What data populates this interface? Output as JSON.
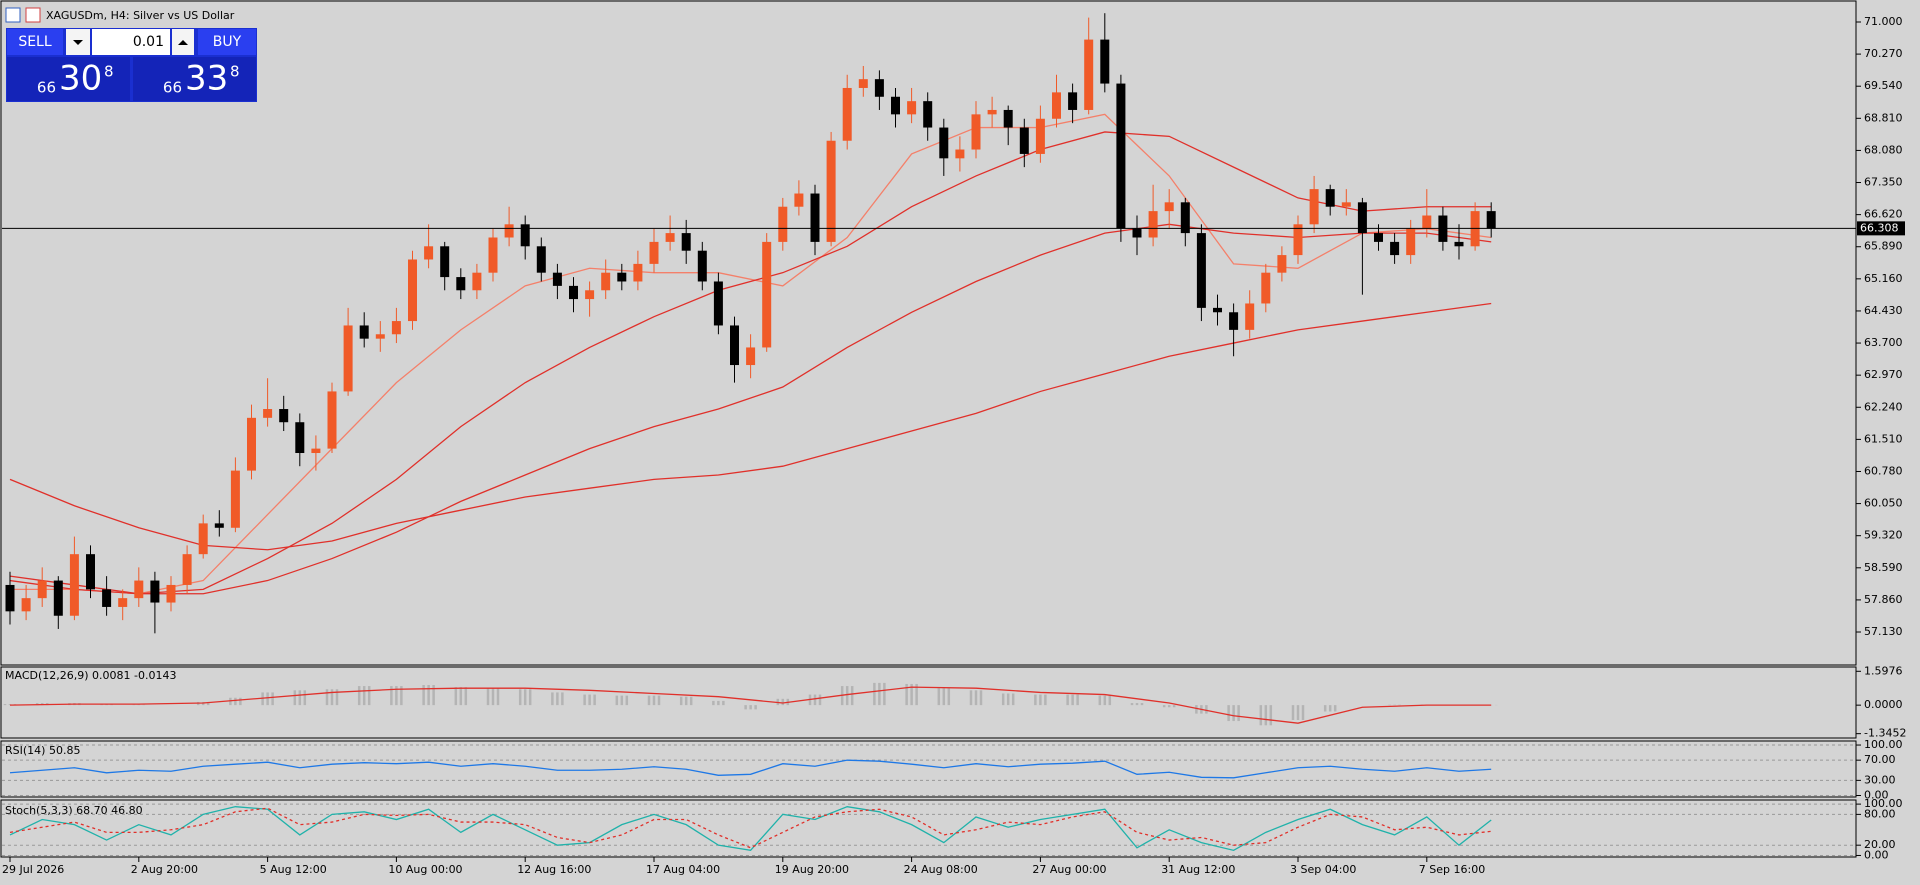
{
  "header": {
    "title": "XAGUSDm, H4:  Silver vs US Dollar"
  },
  "trade_panel": {
    "sell": "SELL",
    "buy": "BUY",
    "volume": "0.01",
    "bid": {
      "big": "66",
      "main": "30",
      "small": "8"
    },
    "ask": {
      "big": "66",
      "main": "33",
      "small": "8"
    }
  },
  "chart_data": {
    "type": "candlestick",
    "categories": [
      "29 Jul 2026",
      null,
      null,
      null,
      null,
      null,
      null,
      null,
      "2 Aug 20:00",
      null,
      null,
      null,
      null,
      null,
      null,
      null,
      "5 Aug 12:00",
      null,
      null,
      null,
      null,
      null,
      null,
      null,
      "10 Aug 00:00",
      null,
      null,
      null,
      null,
      null,
      null,
      null,
      "12 Aug 16:00",
      null,
      null,
      null,
      null,
      null,
      null,
      null,
      "17 Aug 04:00",
      null,
      null,
      null,
      null,
      null,
      null,
      null,
      "19 Aug 20:00",
      null,
      null,
      null,
      null,
      null,
      null,
      null,
      "24 Aug 08:00",
      null,
      null,
      null,
      null,
      null,
      null,
      null,
      "27 Aug 00:00",
      null,
      null,
      null,
      null,
      null,
      null,
      null,
      "31 Aug 12:00",
      null,
      null,
      null,
      null,
      null,
      null,
      null,
      "3 Sep 04:00",
      null,
      null,
      null,
      null,
      null,
      null,
      null,
      "7 Sep 16:00",
      null,
      null,
      null,
      null
    ],
    "candles": [
      [
        58.2,
        58.5,
        57.3,
        57.6
      ],
      [
        57.6,
        58.2,
        57.4,
        57.9
      ],
      [
        57.9,
        58.6,
        57.7,
        58.3
      ],
      [
        58.3,
        58.4,
        57.2,
        57.5
      ],
      [
        57.5,
        59.3,
        57.4,
        58.9
      ],
      [
        58.9,
        59.1,
        57.9,
        58.1
      ],
      [
        58.1,
        58.4,
        57.5,
        57.7
      ],
      [
        57.7,
        58.1,
        57.4,
        57.9
      ],
      [
        57.9,
        58.6,
        57.7,
        58.3
      ],
      [
        58.3,
        58.5,
        57.1,
        57.8
      ],
      [
        57.8,
        58.4,
        57.6,
        58.2
      ],
      [
        58.2,
        59.1,
        58.0,
        58.9
      ],
      [
        58.9,
        59.8,
        58.8,
        59.6
      ],
      [
        59.6,
        59.9,
        59.3,
        59.5
      ],
      [
        59.5,
        61.1,
        59.4,
        60.8
      ],
      [
        60.8,
        62.3,
        60.6,
        62.0
      ],
      [
        62.0,
        62.9,
        61.8,
        62.2
      ],
      [
        62.2,
        62.5,
        61.7,
        61.9
      ],
      [
        61.9,
        62.1,
        60.9,
        61.2
      ],
      [
        61.2,
        61.6,
        60.8,
        61.3
      ],
      [
        61.3,
        62.8,
        61.2,
        62.6
      ],
      [
        62.6,
        64.5,
        62.5,
        64.1
      ],
      [
        64.1,
        64.4,
        63.6,
        63.8
      ],
      [
        63.8,
        64.2,
        63.5,
        63.9
      ],
      [
        63.9,
        64.5,
        63.7,
        64.2
      ],
      [
        64.2,
        65.8,
        64.0,
        65.6
      ],
      [
        65.6,
        66.4,
        65.4,
        65.9
      ],
      [
        65.9,
        66.0,
        64.9,
        65.2
      ],
      [
        65.2,
        65.4,
        64.7,
        64.9
      ],
      [
        64.9,
        65.5,
        64.7,
        65.3
      ],
      [
        65.3,
        66.3,
        65.1,
        66.1
      ],
      [
        66.1,
        66.8,
        65.9,
        66.4
      ],
      [
        66.4,
        66.6,
        65.6,
        65.9
      ],
      [
        65.9,
        66.1,
        65.1,
        65.3
      ],
      [
        65.3,
        65.5,
        64.7,
        65.0
      ],
      [
        65.0,
        65.2,
        64.4,
        64.7
      ],
      [
        64.7,
        65.1,
        64.3,
        64.9
      ],
      [
        64.9,
        65.6,
        64.7,
        65.3
      ],
      [
        65.3,
        65.5,
        64.9,
        65.1
      ],
      [
        65.1,
        65.8,
        64.9,
        65.5
      ],
      [
        65.5,
        66.3,
        65.3,
        66.0
      ],
      [
        66.0,
        66.6,
        65.8,
        66.2
      ],
      [
        66.2,
        66.5,
        65.5,
        65.8
      ],
      [
        65.8,
        66.0,
        64.9,
        65.1
      ],
      [
        65.1,
        65.3,
        63.9,
        64.1
      ],
      [
        64.1,
        64.3,
        62.8,
        63.2
      ],
      [
        63.2,
        63.9,
        62.9,
        63.6
      ],
      [
        63.6,
        66.2,
        63.5,
        66.0
      ],
      [
        66.0,
        67.0,
        65.8,
        66.8
      ],
      [
        66.8,
        67.4,
        66.6,
        67.1
      ],
      [
        67.1,
        67.3,
        65.7,
        66.0
      ],
      [
        66.0,
        68.5,
        65.9,
        68.3
      ],
      [
        68.3,
        69.8,
        68.1,
        69.5
      ],
      [
        69.5,
        70.0,
        69.3,
        69.7
      ],
      [
        69.7,
        69.9,
        69.0,
        69.3
      ],
      [
        69.3,
        69.5,
        68.6,
        68.9
      ],
      [
        68.9,
        69.5,
        68.7,
        69.2
      ],
      [
        69.2,
        69.4,
        68.3,
        68.6
      ],
      [
        68.6,
        68.8,
        67.5,
        67.9
      ],
      [
        67.9,
        68.4,
        67.6,
        68.1
      ],
      [
        68.1,
        69.2,
        67.9,
        68.9
      ],
      [
        68.9,
        69.3,
        68.6,
        69.0
      ],
      [
        69.0,
        69.1,
        68.2,
        68.6
      ],
      [
        68.6,
        68.8,
        67.7,
        68.0
      ],
      [
        68.0,
        69.1,
        67.8,
        68.8
      ],
      [
        68.8,
        69.8,
        68.6,
        69.4
      ],
      [
        69.4,
        69.6,
        68.7,
        69.0
      ],
      [
        69.0,
        71.1,
        68.9,
        70.6
      ],
      [
        70.6,
        71.2,
        69.4,
        69.6
      ],
      [
        69.6,
        69.8,
        66.0,
        66.3
      ],
      [
        66.3,
        66.6,
        65.7,
        66.1
      ],
      [
        66.1,
        67.3,
        65.9,
        66.7
      ],
      [
        66.7,
        67.2,
        66.3,
        66.9
      ],
      [
        66.9,
        67.0,
        65.9,
        66.2
      ],
      [
        66.2,
        66.4,
        64.2,
        64.5
      ],
      [
        64.5,
        64.8,
        64.1,
        64.4
      ],
      [
        64.4,
        64.6,
        63.4,
        64.0
      ],
      [
        64.0,
        64.9,
        63.8,
        64.6
      ],
      [
        64.6,
        65.5,
        64.4,
        65.3
      ],
      [
        65.3,
        65.9,
        65.1,
        65.7
      ],
      [
        65.7,
        66.6,
        65.5,
        66.4
      ],
      [
        66.4,
        67.5,
        66.2,
        67.2
      ],
      [
        67.2,
        67.3,
        66.6,
        66.8
      ],
      [
        66.8,
        67.2,
        66.6,
        66.9
      ],
      [
        66.9,
        67.0,
        64.8,
        66.2
      ],
      [
        66.2,
        66.4,
        65.8,
        66.0
      ],
      [
        66.0,
        66.2,
        65.5,
        65.7
      ],
      [
        65.7,
        66.5,
        65.5,
        66.3
      ],
      [
        66.3,
        67.2,
        66.1,
        66.6
      ],
      [
        66.6,
        66.8,
        65.8,
        66.0
      ],
      [
        66.0,
        66.4,
        65.6,
        65.9
      ],
      [
        65.9,
        66.9,
        65.8,
        66.7
      ],
      [
        66.7,
        66.9,
        66.1,
        66.3
      ]
    ],
    "up_color": "#f05a28",
    "down_color": "#000000",
    "line_x": [
      0,
      4,
      8,
      12,
      16,
      20,
      24,
      28,
      32,
      36,
      40,
      44,
      48,
      52,
      56,
      60,
      64,
      68,
      72,
      76,
      80,
      84,
      88,
      92
    ],
    "lines": [
      {
        "color": "#f4806a",
        "values": [
          58.1,
          58.1,
          58.0,
          58.3,
          59.8,
          61.3,
          62.8,
          64.0,
          65.0,
          65.4,
          65.3,
          65.3,
          65.0,
          66.1,
          68.0,
          68.6,
          68.6,
          68.9,
          67.5,
          65.5,
          65.4,
          66.2,
          66.3,
          66.1
        ]
      },
      {
        "color": "#e0302a",
        "values": [
          58.4,
          58.2,
          58.0,
          58.1,
          58.8,
          59.6,
          60.6,
          61.8,
          62.8,
          63.6,
          64.3,
          64.9,
          65.3,
          65.9,
          66.8,
          67.5,
          68.1,
          68.5,
          68.4,
          67.7,
          67.0,
          66.7,
          66.8,
          66.8
        ]
      },
      {
        "color": "#e0302a",
        "values": [
          58.3,
          58.1,
          58.0,
          58.0,
          58.3,
          58.8,
          59.4,
          60.1,
          60.7,
          61.3,
          61.8,
          62.2,
          62.7,
          63.6,
          64.4,
          65.1,
          65.7,
          66.2,
          66.4,
          66.2,
          66.1,
          66.2,
          66.2,
          66.0
        ]
      },
      {
        "color": "#e0302a",
        "values": [
          60.6,
          60.0,
          59.5,
          59.1,
          59.0,
          59.2,
          59.6,
          59.9,
          60.2,
          60.4,
          60.6,
          60.7,
          60.9,
          61.3,
          61.7,
          62.1,
          62.6,
          63.0,
          63.4,
          63.7,
          64.0,
          64.2,
          64.4,
          64.6
        ]
      }
    ],
    "ylim": [
      56.38,
      71.5
    ],
    "yticks": [
      {
        "value": 71,
        "label": "71.000"
      },
      {
        "value": 70.27,
        "label": "70.270"
      },
      {
        "value": 69.54,
        "label": "69.540"
      },
      {
        "value": 68.81,
        "label": "68.810"
      },
      {
        "value": 68.08,
        "label": "68.080"
      },
      {
        "value": 67.35,
        "label": "67.350"
      },
      {
        "value": 66.62,
        "label": "66.620"
      },
      {
        "value": 65.89,
        "label": "65.890"
      },
      {
        "value": 65.16,
        "label": "65.160"
      },
      {
        "value": 64.43,
        "label": "64.430"
      },
      {
        "value": 63.7,
        "label": "63.700"
      },
      {
        "value": 62.97,
        "label": "62.970"
      },
      {
        "value": 62.24,
        "label": "62.240"
      },
      {
        "value": 61.51,
        "label": "61.510"
      },
      {
        "value": 60.78,
        "label": "60.780"
      },
      {
        "value": 60.05,
        "label": "60.050"
      },
      {
        "value": 59.32,
        "label": "59.320"
      },
      {
        "value": 58.59,
        "label": "58.590"
      },
      {
        "value": 57.86,
        "label": "57.860"
      },
      {
        "value": 57.13,
        "label": "57.130"
      }
    ],
    "current_price": {
      "value": 66.308,
      "label": "66.308"
    }
  },
  "indicators": {
    "macd": {
      "label": "MACD(12,26,9) 0.0081 -0.0143",
      "ylim": [
        -1.55,
        1.8
      ],
      "yticks": [
        1.5976,
        {
          "value": 0,
          "label": "0.0000"
        },
        -1.3452
      ],
      "hist_x": [
        0,
        2,
        4,
        6,
        8,
        10,
        12,
        14,
        16,
        18,
        20,
        22,
        24,
        26,
        28,
        30,
        32,
        34,
        36,
        38,
        40,
        42,
        44,
        46,
        48,
        50,
        52,
        54,
        56,
        58,
        60,
        62,
        64,
        66,
        68,
        70,
        72,
        74,
        76,
        78,
        80,
        82,
        84,
        86,
        88,
        90,
        92
      ],
      "histogram": [
        0.05,
        0.1,
        0.1,
        0.05,
        0.02,
        0.0,
        0.15,
        0.35,
        0.6,
        0.7,
        0.75,
        0.9,
        0.9,
        0.95,
        0.85,
        0.8,
        0.75,
        0.6,
        0.5,
        0.45,
        0.45,
        0.4,
        0.2,
        -0.2,
        0.3,
        0.5,
        0.9,
        1.05,
        1.0,
        0.8,
        0.7,
        0.55,
        0.5,
        0.5,
        0.45,
        0.1,
        -0.1,
        -0.4,
        -0.75,
        -0.95,
        -0.7,
        -0.3,
        0.0,
        0.02,
        0.03,
        0.02,
        0.01
      ],
      "hist_color": "#b4b4b4",
      "signal_x": [
        0,
        4,
        8,
        12,
        16,
        20,
        24,
        28,
        32,
        36,
        40,
        44,
        48,
        52,
        56,
        60,
        64,
        68,
        72,
        76,
        80,
        84,
        88,
        92
      ],
      "signal": [
        0.0,
        0.05,
        0.05,
        0.1,
        0.35,
        0.6,
        0.75,
        0.8,
        0.8,
        0.7,
        0.55,
        0.4,
        0.1,
        0.5,
        0.85,
        0.8,
        0.6,
        0.5,
        0.1,
        -0.5,
        -0.85,
        -0.1,
        0.0,
        0.0
      ],
      "signal_color": "#e0302a"
    },
    "rsi": {
      "label": "RSI(14) 50.85",
      "ylim": [
        -3,
        108
      ],
      "yticks": [
        {
          "value": 100,
          "label": "100.00"
        },
        {
          "value": 70,
          "label": "70.00"
        },
        {
          "value": 30,
          "label": "30.00"
        },
        {
          "value": 0,
          "label": "0.00"
        }
      ],
      "x": [
        0,
        2,
        4,
        6,
        8,
        10,
        12,
        14,
        16,
        18,
        20,
        22,
        24,
        26,
        28,
        30,
        32,
        34,
        36,
        38,
        40,
        42,
        44,
        46,
        48,
        50,
        52,
        54,
        56,
        58,
        60,
        62,
        64,
        66,
        68,
        70,
        72,
        74,
        76,
        78,
        80,
        82,
        84,
        86,
        88,
        90,
        92
      ],
      "values": [
        45,
        50,
        55,
        45,
        50,
        48,
        58,
        62,
        66,
        55,
        62,
        65,
        63,
        66,
        58,
        63,
        58,
        50,
        50,
        52,
        57,
        52,
        40,
        42,
        63,
        58,
        70,
        68,
        62,
        55,
        63,
        57,
        62,
        64,
        68,
        42,
        46,
        36,
        35,
        45,
        55,
        58,
        52,
        48,
        55,
        48,
        52
      ],
      "color": "#1e78e6"
    },
    "stoch": {
      "label": "Stoch(5,3,3) 68.70 46.80",
      "ylim": [
        -3,
        108
      ],
      "yticks": [
        {
          "value": 100,
          "label": "100.00"
        },
        {
          "value": 80,
          "label": "80.00"
        },
        {
          "value": 20,
          "label": "20.00"
        },
        {
          "value": 0,
          "label": "0.00"
        }
      ],
      "x": [
        0,
        2,
        4,
        6,
        8,
        10,
        12,
        14,
        16,
        18,
        20,
        22,
        24,
        26,
        28,
        30,
        32,
        34,
        36,
        38,
        40,
        42,
        44,
        46,
        48,
        50,
        52,
        54,
        56,
        58,
        60,
        62,
        64,
        66,
        68,
        70,
        72,
        74,
        76,
        78,
        80,
        82,
        84,
        86,
        88,
        90,
        92
      ],
      "main": [
        40,
        70,
        60,
        30,
        60,
        40,
        80,
        95,
        90,
        40,
        80,
        85,
        70,
        90,
        45,
        80,
        50,
        20,
        25,
        60,
        80,
        60,
        20,
        10,
        80,
        70,
        95,
        85,
        60,
        25,
        75,
        55,
        70,
        80,
        90,
        15,
        50,
        25,
        10,
        45,
        70,
        90,
        60,
        40,
        75,
        20,
        69
      ],
      "signal": [
        45,
        55,
        65,
        45,
        45,
        50,
        60,
        85,
        92,
        60,
        65,
        80,
        78,
        80,
        65,
        65,
        60,
        35,
        25,
        40,
        70,
        70,
        40,
        15,
        45,
        75,
        85,
        90,
        75,
        40,
        50,
        65,
        60,
        75,
        85,
        45,
        30,
        35,
        20,
        25,
        55,
        80,
        75,
        50,
        55,
        40,
        47
      ],
      "main_color": "#20b2aa",
      "signal_color": "#e0302a"
    }
  }
}
